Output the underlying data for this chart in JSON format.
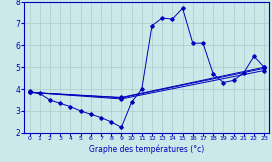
{
  "xlabel": "Graphe des températures (°c)",
  "xlim": [
    -0.5,
    23.5
  ],
  "ylim": [
    2,
    8
  ],
  "yticks": [
    2,
    3,
    4,
    5,
    6,
    7,
    8
  ],
  "xticks": [
    0,
    1,
    2,
    3,
    4,
    5,
    6,
    7,
    8,
    9,
    10,
    11,
    12,
    13,
    14,
    15,
    16,
    17,
    18,
    19,
    20,
    21,
    22,
    23
  ],
  "background_color": "#cce8e8",
  "grid_color": "#aacccc",
  "line_color": "#0000bb",
  "line1": {
    "x": [
      0,
      1,
      2,
      3,
      4,
      5,
      6,
      7,
      8,
      9,
      10,
      11,
      12,
      13,
      14,
      15,
      16,
      17,
      18,
      19,
      20,
      21,
      22,
      23
    ],
    "y": [
      3.9,
      3.8,
      3.5,
      3.35,
      3.2,
      3.0,
      2.85,
      2.7,
      2.5,
      2.25,
      3.4,
      4.0,
      6.9,
      7.25,
      7.2,
      7.7,
      6.1,
      6.1,
      4.7,
      4.3,
      4.4,
      4.75,
      5.5,
      5.0
    ]
  },
  "line2": {
    "x": [
      0,
      9,
      23
    ],
    "y": [
      3.85,
      3.55,
      4.85
    ]
  },
  "line3": {
    "x": [
      0,
      9,
      23
    ],
    "y": [
      3.85,
      3.6,
      4.95
    ]
  },
  "line4": {
    "x": [
      0,
      9,
      23
    ],
    "y": [
      3.85,
      3.62,
      5.0
    ]
  }
}
